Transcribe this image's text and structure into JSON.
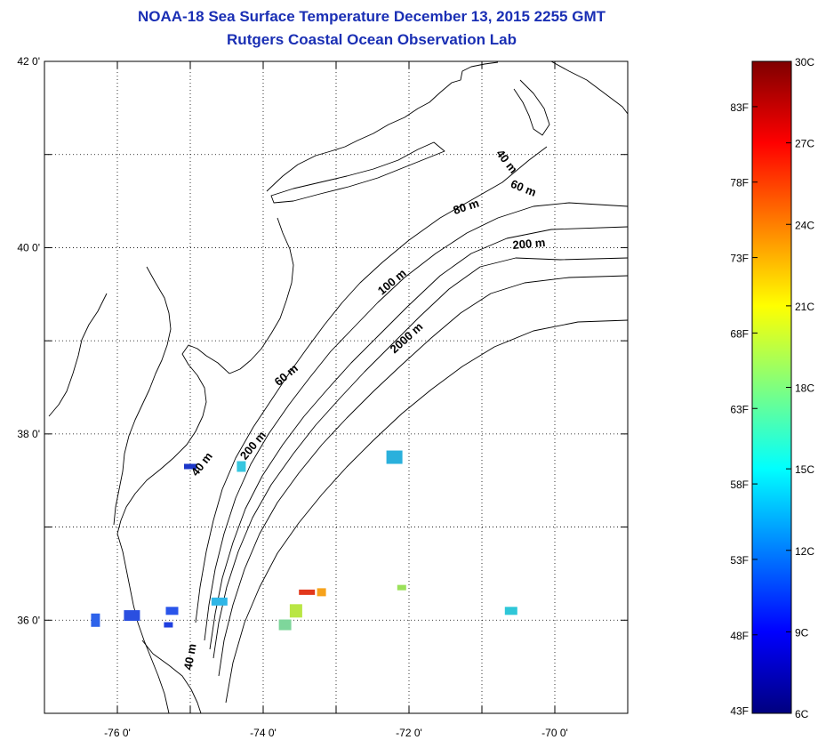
{
  "title": {
    "line1": "NOAA-18 Sea Surface Temperature December 13, 2015 2255 GMT",
    "line2": "Rutgers Coastal Ocean Observation Lab"
  },
  "map": {
    "lon_range": [
      -77,
      -69
    ],
    "lat_range": [
      35,
      42
    ],
    "lat_ticks": [
      {
        "value": 42,
        "label": "42 0'"
      },
      {
        "value": 40,
        "label": "40 0'"
      },
      {
        "value": 38,
        "label": "38 0'"
      },
      {
        "value": 36,
        "label": "36 0'"
      }
    ],
    "lon_ticks": [
      {
        "value": -76,
        "label": "-76 0'"
      },
      {
        "value": -74,
        "label": "-74 0'"
      },
      {
        "value": -72,
        "label": "-72 0'"
      },
      {
        "value": -70,
        "label": "-70 0'"
      }
    ],
    "grid": "dotted",
    "isobath_labels": [
      {
        "text": "40 m",
        "lon": -70.7,
        "lat": 40.9,
        "angle": 52
      },
      {
        "text": "60 m",
        "lon": -70.45,
        "lat": 40.6,
        "angle": 22
      },
      {
        "text": "80 m",
        "lon": -71.2,
        "lat": 40.4,
        "angle": -18
      },
      {
        "text": "200 m",
        "lon": -70.35,
        "lat": 40.0,
        "angle": -5
      },
      {
        "text": "100 m",
        "lon": -72.2,
        "lat": 39.6,
        "angle": -40
      },
      {
        "text": "2000 m",
        "lon": -72.0,
        "lat": 39.0,
        "angle": -42
      },
      {
        "text": "60 m",
        "lon": -73.65,
        "lat": 38.6,
        "angle": -40
      },
      {
        "text": "40 m",
        "lon": -74.8,
        "lat": 37.65,
        "angle": -52
      },
      {
        "text": "200 m",
        "lon": -74.1,
        "lat": 37.85,
        "angle": -50
      },
      {
        "text": "40 m",
        "lon": -74.95,
        "lat": 35.6,
        "angle": -80
      }
    ],
    "sst_patches": [
      {
        "lon": -75.3,
        "lat": 35.95,
        "color": "#1f3fe0"
      },
      {
        "lon": -75.25,
        "lat": 36.1,
        "color": "#2a55ea"
      },
      {
        "lon": -75.8,
        "lat": 36.05,
        "color": "#2a4fe0"
      },
      {
        "lon": -76.3,
        "lat": 36.0,
        "color": "#2e63ea"
      },
      {
        "lon": -75.0,
        "lat": 37.65,
        "color": "#1c37c8"
      },
      {
        "lon": -74.6,
        "lat": 36.2,
        "color": "#2fb6e6"
      },
      {
        "lon": -74.3,
        "lat": 37.65,
        "color": "#36c7e0"
      },
      {
        "lon": -73.55,
        "lat": 36.1,
        "color": "#b9e644"
      },
      {
        "lon": -73.4,
        "lat": 36.3,
        "color": "#e2381c"
      },
      {
        "lon": -73.2,
        "lat": 36.3,
        "color": "#f6a21b"
      },
      {
        "lon": -73.7,
        "lat": 35.95,
        "color": "#7ed69b"
      },
      {
        "lon": -72.2,
        "lat": 37.75,
        "color": "#2ab0dc"
      },
      {
        "lon": -72.1,
        "lat": 36.35,
        "color": "#9be15a"
      },
      {
        "lon": -70.6,
        "lat": 36.1,
        "color": "#2fc7d8"
      }
    ]
  },
  "colorbar": {
    "min_c": 6,
    "max_c": 30,
    "celsius_labels": [
      {
        "value": 30,
        "label": "30C"
      },
      {
        "value": 27,
        "label": "27C"
      },
      {
        "value": 24,
        "label": "24C"
      },
      {
        "value": 21,
        "label": "21C"
      },
      {
        "value": 18,
        "label": "18C"
      },
      {
        "value": 15,
        "label": "15C"
      },
      {
        "value": 12,
        "label": "12C"
      },
      {
        "value": 9,
        "label": "9C"
      },
      {
        "value": 6,
        "label": "6C"
      }
    ],
    "fahrenheit_labels": [
      {
        "value": 83,
        "label": "83F"
      },
      {
        "value": 78,
        "label": "78F"
      },
      {
        "value": 73,
        "label": "73F"
      },
      {
        "value": 68,
        "label": "68F"
      },
      {
        "value": 63,
        "label": "63F"
      },
      {
        "value": 58,
        "label": "58F"
      },
      {
        "value": 53,
        "label": "53F"
      },
      {
        "value": 48,
        "label": "48F"
      },
      {
        "value": 43,
        "label": "43F"
      }
    ],
    "colormap": [
      "#00007f",
      "#0000ff",
      "#007fff",
      "#00ffff",
      "#7fff7f",
      "#ffff00",
      "#ff7f00",
      "#ff0000",
      "#7f0000"
    ]
  }
}
